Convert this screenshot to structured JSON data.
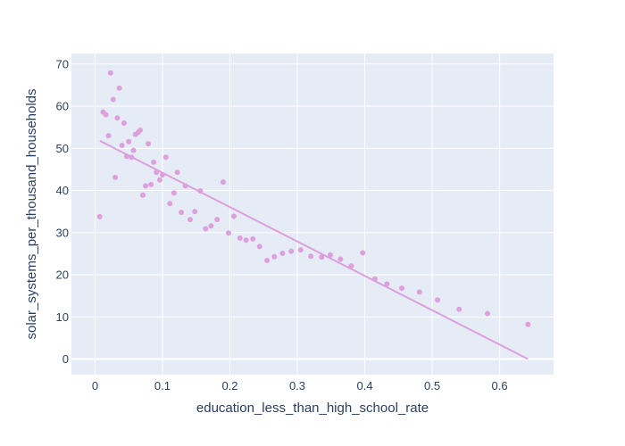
{
  "chart_data": {
    "type": "scatter",
    "title": "",
    "xlabel": "education_less_than_high_school_rate",
    "ylabel": "solar_systems_per_thousand_households",
    "xlim": [
      -0.035,
      0.68
    ],
    "ylim": [
      -3.7,
      72.5
    ],
    "x_ticks": [
      0,
      0.1,
      0.2,
      0.3,
      0.4,
      0.5,
      0.6
    ],
    "x_tick_labels": [
      "0",
      "0.1",
      "0.2",
      "0.3",
      "0.4",
      "0.5",
      "0.6"
    ],
    "y_ticks": [
      0,
      10,
      20,
      30,
      40,
      50,
      60,
      70
    ],
    "y_tick_labels": [
      "0",
      "10",
      "20",
      "30",
      "40",
      "50",
      "60",
      "70"
    ],
    "grid": true,
    "plot_background": "#e5ecf6",
    "grid_color": "#ffffff",
    "marker_color": "#dda0dd",
    "series": [
      {
        "mode": "markers",
        "points": [
          [
            0.007,
            33.8
          ],
          [
            0.012,
            58.6
          ],
          [
            0.016,
            58.0
          ],
          [
            0.02,
            53.0
          ],
          [
            0.023,
            67.9
          ],
          [
            0.027,
            61.6
          ],
          [
            0.03,
            43.1
          ],
          [
            0.033,
            57.2
          ],
          [
            0.036,
            64.3
          ],
          [
            0.04,
            50.7
          ],
          [
            0.043,
            56.0
          ],
          [
            0.047,
            48.1
          ],
          [
            0.05,
            51.6
          ],
          [
            0.054,
            47.9
          ],
          [
            0.057,
            49.5
          ],
          [
            0.06,
            53.3
          ],
          [
            0.064,
            53.8
          ],
          [
            0.067,
            54.3
          ],
          [
            0.071,
            38.9
          ],
          [
            0.075,
            41.1
          ],
          [
            0.079,
            51.1
          ],
          [
            0.083,
            41.4
          ],
          [
            0.087,
            46.7
          ],
          [
            0.091,
            44.3
          ],
          [
            0.096,
            42.5
          ],
          [
            0.1,
            43.7
          ],
          [
            0.105,
            47.9
          ],
          [
            0.111,
            36.9
          ],
          [
            0.117,
            39.4
          ],
          [
            0.122,
            44.3
          ],
          [
            0.128,
            34.8
          ],
          [
            0.134,
            41.1
          ],
          [
            0.141,
            33.1
          ],
          [
            0.148,
            35.0
          ],
          [
            0.156,
            39.9
          ],
          [
            0.164,
            30.9
          ],
          [
            0.172,
            31.6
          ],
          [
            0.181,
            33.1
          ],
          [
            0.19,
            42.0
          ],
          [
            0.198,
            29.9
          ],
          [
            0.206,
            33.9
          ],
          [
            0.215,
            28.7
          ],
          [
            0.224,
            28.2
          ],
          [
            0.234,
            28.5
          ],
          [
            0.244,
            26.7
          ],
          [
            0.255,
            23.4
          ],
          [
            0.266,
            24.3
          ],
          [
            0.278,
            25.1
          ],
          [
            0.291,
            25.6
          ],
          [
            0.305,
            25.9
          ],
          [
            0.32,
            24.4
          ],
          [
            0.336,
            24.2
          ],
          [
            0.349,
            24.7
          ],
          [
            0.364,
            23.7
          ],
          [
            0.38,
            22.1
          ],
          [
            0.397,
            25.2
          ],
          [
            0.415,
            19.0
          ],
          [
            0.433,
            17.8
          ],
          [
            0.455,
            16.8
          ],
          [
            0.481,
            15.9
          ],
          [
            0.508,
            14.0
          ],
          [
            0.54,
            11.8
          ],
          [
            0.582,
            10.8
          ],
          [
            0.642,
            8.2
          ]
        ]
      },
      {
        "mode": "lines",
        "points": [
          [
            0.007,
            51.8
          ],
          [
            0.642,
            0.0
          ]
        ]
      }
    ]
  }
}
